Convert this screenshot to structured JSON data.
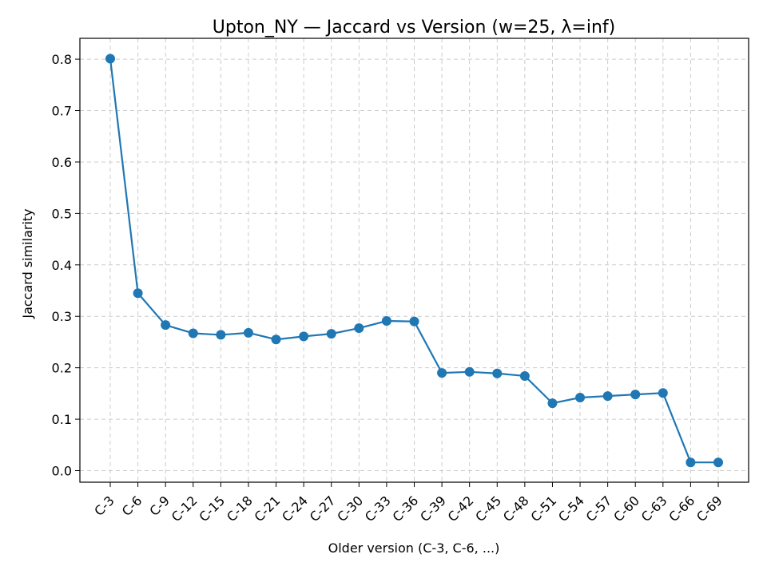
{
  "chart_data": {
    "type": "line",
    "title": "Upton_NY — Jaccard vs Version (w=25, λ=inf)",
    "xlabel": "Older version (C-3, C-6, ...)",
    "ylabel": "Jaccard similarity",
    "categories": [
      "C-3",
      "C-6",
      "C-9",
      "C-12",
      "C-15",
      "C-18",
      "C-21",
      "C-24",
      "C-27",
      "C-30",
      "C-33",
      "C-36",
      "C-39",
      "C-42",
      "C-45",
      "C-48",
      "C-51",
      "C-54",
      "C-57",
      "C-60",
      "C-63",
      "C-66",
      "C-69"
    ],
    "values": [
      0.801,
      0.345,
      0.283,
      0.267,
      0.264,
      0.268,
      0.255,
      0.261,
      0.266,
      0.277,
      0.291,
      0.29,
      0.19,
      0.192,
      0.189,
      0.184,
      0.131,
      0.142,
      0.145,
      0.148,
      0.151,
      0.016,
      0.016
    ],
    "ylim": [
      -0.0225,
      0.8405
    ],
    "yticks": [
      "0.0",
      "0.1",
      "0.2",
      "0.3",
      "0.4",
      "0.5",
      "0.6",
      "0.7",
      "0.8"
    ],
    "grid": true,
    "marker": "circle",
    "colors": {
      "line": "#1f77b4",
      "grid": "#cccccc",
      "axis": "#000000"
    }
  }
}
